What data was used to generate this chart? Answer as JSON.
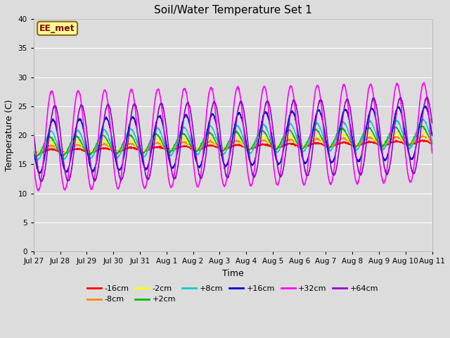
{
  "title": "Soil/Water Temperature Set 1",
  "xlabel": "Time",
  "ylabel": "Temperature (C)",
  "ylim": [
    0,
    40
  ],
  "yticks": [
    0,
    5,
    10,
    15,
    20,
    25,
    30,
    35,
    40
  ],
  "plot_bg_color": "#dcdcdc",
  "fig_bg_color": "#dcdcdc",
  "annotation_text": "EE_met",
  "annotation_bg": "#ffff99",
  "annotation_border": "#8b6914",
  "annotation_text_color": "#8b0000",
  "x_tick_labels": [
    "Jul 27",
    "Jul 28",
    "Jul 29",
    "Jul 30",
    "Jul 31",
    "Aug 1",
    "Aug 2",
    "Aug 3",
    "Aug 4",
    "Aug 5",
    "Aug 6",
    "Aug 7",
    "Aug 8",
    "Aug 9",
    "Aug 10",
    "Aug 11"
  ],
  "n_days": 15,
  "legend_labels": [
    "-16cm",
    "-8cm",
    "-2cm",
    "+2cm",
    "+8cm",
    "+16cm",
    "+32cm",
    "+64cm"
  ],
  "legend_colors": [
    "#ff0000",
    "#ff8800",
    "#ffff00",
    "#00bb00",
    "#00cccc",
    "#0000cc",
    "#ff00ff",
    "#9900cc"
  ]
}
